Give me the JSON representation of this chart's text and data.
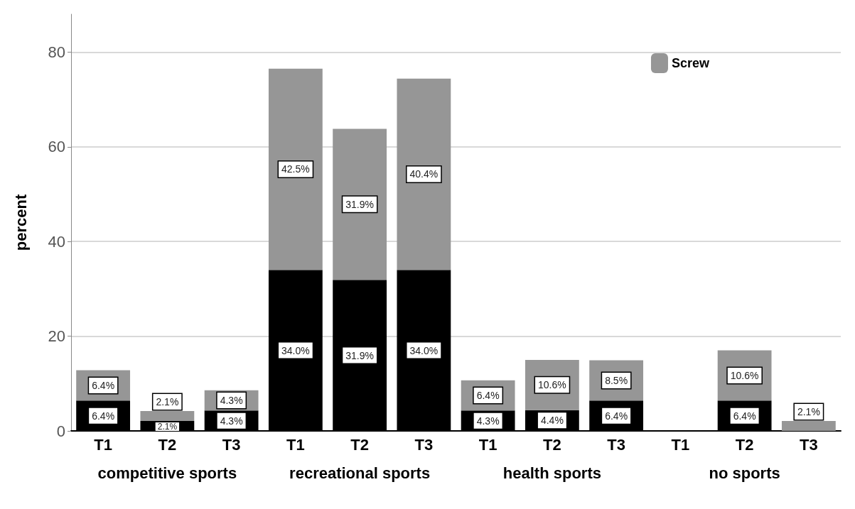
{
  "chart_data": {
    "type": "bar",
    "ylabel": "percent",
    "stacked": true,
    "categories": [
      "T1",
      "T2",
      "T3",
      "T1",
      "T2",
      "T3",
      "T1",
      "T2",
      "T3",
      "T1",
      "T2",
      "T3"
    ],
    "series": [
      {
        "color": "#000000",
        "values": [
          6.4,
          2.1,
          4.3,
          34.0,
          31.9,
          34.0,
          4.3,
          4.4,
          6.4,
          null,
          6.4,
          null
        ],
        "value_labels": [
          "6.4%",
          "2.1%",
          "4.3%",
          "34.0%",
          "31.9%",
          "34.0%",
          "4.3%",
          "4.4%",
          "6.4%",
          null,
          "6.4%",
          null
        ]
      },
      {
        "name": "Screw",
        "color": "#969696",
        "values": [
          6.4,
          2.1,
          4.3,
          42.5,
          31.9,
          40.4,
          6.4,
          10.6,
          8.5,
          null,
          10.6,
          2.1
        ],
        "value_labels": [
          "6.4%",
          "2.1%",
          "4.3%",
          "42.5%",
          "31.9%",
          "40.4%",
          "6.4%",
          "10.6%",
          "8.5%",
          null,
          "10.6%",
          "2.1%"
        ]
      }
    ],
    "annotations": [
      "competitive sports",
      "recreational sports",
      "health sports",
      "no sports"
    ],
    "ylim": [
      0,
      88
    ],
    "yticks": [
      0,
      20,
      40,
      60,
      80
    ],
    "grid": "y",
    "legend": "top right"
  }
}
